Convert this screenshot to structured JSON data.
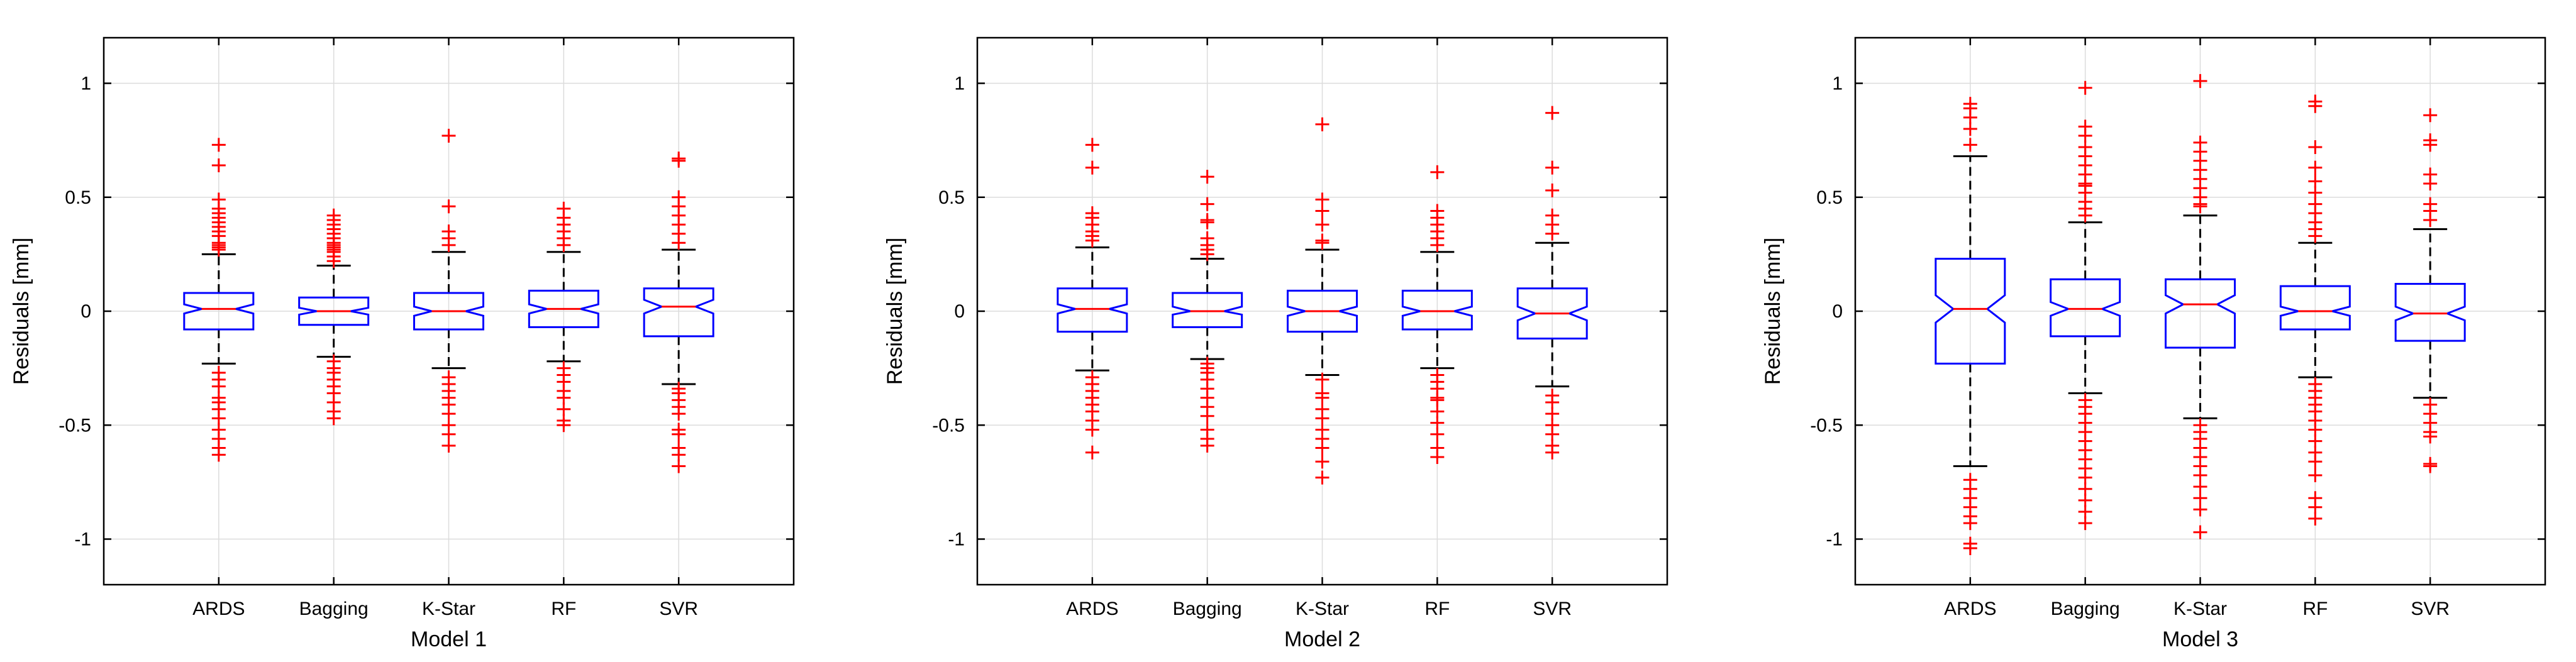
{
  "chart_data": [
    {
      "type": "boxplot",
      "xlabel": "Model 1",
      "ylabel": "Residuals [mm]",
      "ylim": [
        -1.2,
        1.2
      ],
      "yticks": [
        -1,
        -0.5,
        0,
        0.5,
        1
      ],
      "ytick_labels": [
        "-1",
        "-0.5",
        "0",
        "0.5",
        "1"
      ],
      "grid": true,
      "notched": true,
      "colors": {
        "box": "#0000ff",
        "median": "#ff0000",
        "whisker": "#000000",
        "outlier": "#ff0000"
      },
      "categories": [
        "ARDS",
        "Bagging",
        "K-Star",
        "RF",
        "SVR"
      ],
      "boxes": [
        {
          "median": 0.01,
          "q1": -0.08,
          "q3": 0.08,
          "whisker_low": -0.23,
          "whisker_high": 0.25,
          "notch_low": -0.01,
          "notch_high": 0.03,
          "outliers": [
            0.27,
            0.28,
            0.29,
            0.3,
            0.33,
            0.35,
            0.37,
            0.39,
            0.41,
            0.43,
            0.45,
            0.49,
            0.64,
            0.73,
            -0.27,
            -0.3,
            -0.33,
            -0.38,
            -0.4,
            -0.43,
            -0.47,
            -0.52,
            -0.56,
            -0.6,
            -0.63
          ]
        },
        {
          "median": 0.0,
          "q1": -0.06,
          "q3": 0.06,
          "whisker_low": -0.2,
          "whisker_high": 0.2,
          "notch_low": -0.015,
          "notch_high": 0.015,
          "outliers": [
            0.22,
            0.24,
            0.26,
            0.27,
            0.28,
            0.29,
            0.3,
            0.32,
            0.34,
            0.36,
            0.38,
            0.4,
            0.42,
            -0.22,
            -0.25,
            -0.27,
            -0.3,
            -0.33,
            -0.36,
            -0.4,
            -0.44,
            -0.47
          ]
        },
        {
          "median": 0.0,
          "q1": -0.08,
          "q3": 0.08,
          "whisker_low": -0.25,
          "whisker_high": 0.26,
          "notch_low": -0.02,
          "notch_high": 0.02,
          "outliers": [
            0.29,
            0.32,
            0.35,
            0.46,
            0.77,
            -0.29,
            -0.32,
            -0.35,
            -0.38,
            -0.41,
            -0.45,
            -0.5,
            -0.54,
            -0.59
          ]
        },
        {
          "median": 0.01,
          "q1": -0.07,
          "q3": 0.09,
          "whisker_low": -0.22,
          "whisker_high": 0.26,
          "notch_low": -0.01,
          "notch_high": 0.03,
          "outliers": [
            0.29,
            0.32,
            0.35,
            0.38,
            0.41,
            0.45,
            -0.25,
            -0.28,
            -0.31,
            -0.35,
            -0.38,
            -0.43,
            -0.48,
            -0.5
          ]
        },
        {
          "median": 0.02,
          "q1": -0.11,
          "q3": 0.1,
          "whisker_low": -0.32,
          "whisker_high": 0.27,
          "notch_low": -0.01,
          "notch_high": 0.05,
          "outliers": [
            0.3,
            0.34,
            0.38,
            0.42,
            0.46,
            0.5,
            0.66,
            0.67,
            -0.34,
            -0.36,
            -0.39,
            -0.42,
            -0.45,
            -0.52,
            -0.54,
            -0.6,
            -0.63,
            -0.68
          ]
        }
      ]
    },
    {
      "type": "boxplot",
      "xlabel": "Model 2",
      "ylabel": "Residuals [mm]",
      "ylim": [
        -1.2,
        1.2
      ],
      "yticks": [
        -1,
        -0.5,
        0,
        0.5,
        1
      ],
      "ytick_labels": [
        "-1",
        "-0.5",
        "0",
        "0.5",
        "1"
      ],
      "grid": true,
      "notched": true,
      "colors": {
        "box": "#0000ff",
        "median": "#ff0000",
        "whisker": "#000000",
        "outlier": "#ff0000"
      },
      "categories": [
        "ARDS",
        "Bagging",
        "K-Star",
        "RF",
        "SVR"
      ],
      "boxes": [
        {
          "median": 0.01,
          "q1": -0.09,
          "q3": 0.1,
          "whisker_low": -0.26,
          "whisker_high": 0.28,
          "notch_low": -0.01,
          "notch_high": 0.03,
          "outliers": [
            0.31,
            0.33,
            0.35,
            0.38,
            0.41,
            0.43,
            0.63,
            0.73,
            -0.29,
            -0.32,
            -0.35,
            -0.38,
            -0.41,
            -0.44,
            -0.48,
            -0.52,
            -0.62
          ]
        },
        {
          "median": 0.0,
          "q1": -0.07,
          "q3": 0.08,
          "whisker_low": -0.21,
          "whisker_high": 0.23,
          "notch_low": -0.015,
          "notch_high": 0.02,
          "outliers": [
            0.25,
            0.27,
            0.29,
            0.32,
            0.39,
            0.4,
            0.47,
            0.59,
            -0.23,
            -0.25,
            -0.27,
            -0.3,
            -0.34,
            -0.38,
            -0.42,
            -0.46,
            -0.52,
            -0.56,
            -0.59
          ]
        },
        {
          "median": 0.0,
          "q1": -0.09,
          "q3": 0.09,
          "whisker_low": -0.28,
          "whisker_high": 0.27,
          "notch_low": -0.02,
          "notch_high": 0.02,
          "outliers": [
            0.3,
            0.31,
            0.38,
            0.44,
            0.49,
            0.82,
            -0.3,
            -0.36,
            -0.38,
            -0.43,
            -0.47,
            -0.52,
            -0.56,
            -0.6,
            -0.66,
            -0.73
          ]
        },
        {
          "median": 0.0,
          "q1": -0.08,
          "q3": 0.09,
          "whisker_low": -0.25,
          "whisker_high": 0.26,
          "notch_low": -0.02,
          "notch_high": 0.02,
          "outliers": [
            0.29,
            0.32,
            0.35,
            0.38,
            0.41,
            0.44,
            0.61,
            -0.28,
            -0.31,
            -0.34,
            -0.38,
            -0.39,
            -0.44,
            -0.49,
            -0.54,
            -0.6,
            -0.64
          ]
        },
        {
          "median": -0.01,
          "q1": -0.12,
          "q3": 0.1,
          "whisker_low": -0.33,
          "whisker_high": 0.3,
          "notch_low": -0.04,
          "notch_high": 0.02,
          "outliers": [
            0.34,
            0.38,
            0.42,
            0.53,
            0.63,
            0.87,
            -0.37,
            -0.4,
            -0.45,
            -0.5,
            -0.54,
            -0.59,
            -0.62
          ]
        }
      ]
    },
    {
      "type": "boxplot",
      "xlabel": "Model 3",
      "ylabel": "Residuals [mm]",
      "ylim": [
        -1.2,
        1.2
      ],
      "yticks": [
        -1,
        -0.5,
        0,
        0.5,
        1
      ],
      "ytick_labels": [
        "-1",
        "-0.5",
        "0",
        "0.5",
        "1"
      ],
      "grid": true,
      "notched": true,
      "colors": {
        "box": "#0000ff",
        "median": "#ff0000",
        "whisker": "#000000",
        "outlier": "#ff0000"
      },
      "categories": [
        "ARDS",
        "Bagging",
        "K-Star",
        "RF",
        "SVR"
      ],
      "boxes": [
        {
          "median": 0.01,
          "q1": -0.23,
          "q3": 0.23,
          "whisker_low": -0.68,
          "whisker_high": 0.68,
          "notch_low": -0.05,
          "notch_high": 0.07,
          "outliers": [
            0.73,
            0.8,
            0.85,
            0.89,
            0.91,
            -0.74,
            -0.78,
            -0.82,
            -0.86,
            -0.9,
            -0.93,
            -1.02,
            -1.04
          ]
        },
        {
          "median": 0.01,
          "q1": -0.11,
          "q3": 0.14,
          "whisker_low": -0.36,
          "whisker_high": 0.39,
          "notch_low": -0.02,
          "notch_high": 0.04,
          "outliers": [
            0.42,
            0.45,
            0.48,
            0.52,
            0.55,
            0.56,
            0.6,
            0.64,
            0.68,
            0.72,
            0.77,
            0.81,
            0.98,
            -0.39,
            -0.42,
            -0.45,
            -0.49,
            -0.53,
            -0.57,
            -0.61,
            -0.65,
            -0.69,
            -0.73,
            -0.78,
            -0.83,
            -0.88,
            -0.93
          ]
        },
        {
          "median": 0.03,
          "q1": -0.16,
          "q3": 0.14,
          "whisker_low": -0.47,
          "whisker_high": 0.42,
          "notch_low": -0.01,
          "notch_high": 0.07,
          "outliers": [
            0.46,
            0.47,
            0.5,
            0.54,
            0.58,
            0.62,
            0.66,
            0.7,
            0.74,
            1.01,
            -0.5,
            -0.53,
            -0.56,
            -0.6,
            -0.64,
            -0.68,
            -0.72,
            -0.77,
            -0.82,
            -0.87,
            -0.97
          ]
        },
        {
          "median": 0.0,
          "q1": -0.08,
          "q3": 0.11,
          "whisker_low": -0.29,
          "whisker_high": 0.3,
          "notch_low": -0.02,
          "notch_high": 0.02,
          "outliers": [
            0.33,
            0.36,
            0.39,
            0.43,
            0.47,
            0.52,
            0.57,
            0.63,
            0.72,
            0.9,
            0.92,
            -0.32,
            -0.35,
            -0.38,
            -0.41,
            -0.44,
            -0.48,
            -0.52,
            -0.57,
            -0.62,
            -0.66,
            -0.72,
            -0.82,
            -0.86,
            -0.91
          ]
        },
        {
          "median": -0.01,
          "q1": -0.13,
          "q3": 0.12,
          "whisker_low": -0.38,
          "whisker_high": 0.36,
          "notch_low": -0.04,
          "notch_high": 0.02,
          "outliers": [
            0.4,
            0.44,
            0.47,
            0.56,
            0.6,
            0.73,
            0.75,
            0.86,
            -0.41,
            -0.45,
            -0.49,
            -0.53,
            -0.55,
            -0.67,
            -0.68
          ]
        }
      ]
    }
  ]
}
